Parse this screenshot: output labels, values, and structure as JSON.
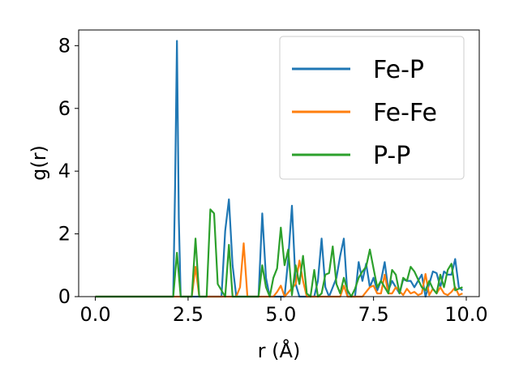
{
  "chart_data": {
    "type": "line",
    "xlabel": "r (Å)",
    "ylabel": "g(r)",
    "xlim": [
      -0.45,
      10.35
    ],
    "ylim": [
      0,
      8.5
    ],
    "xticks": [
      "0.0",
      "2.5",
      "5.0",
      "7.5",
      "10.0"
    ],
    "xtick_values": [
      0,
      2.5,
      5,
      7.5,
      10
    ],
    "yticks": [
      "0",
      "2",
      "4",
      "6",
      "8"
    ],
    "ytick_values": [
      0,
      2,
      4,
      6,
      8
    ],
    "grid": false,
    "legend_position": "top-right",
    "series": [
      {
        "name": "Fe-P",
        "color": "#1f77b4",
        "x": [
          0,
          2.0,
          2.1,
          2.15,
          2.2,
          2.25,
          2.3,
          2.4,
          3.4,
          3.5,
          3.6,
          3.7,
          3.8,
          4.4,
          4.5,
          4.6,
          4.7,
          5.1,
          5.2,
          5.3,
          5.4,
          5.5,
          5.9,
          6.0,
          6.1,
          6.2,
          6.3,
          6.5,
          6.6,
          6.7,
          6.8,
          7.0,
          7.1,
          7.2,
          7.3,
          7.4,
          7.5,
          7.6,
          7.7,
          7.8,
          7.9,
          8.0,
          8.1,
          8.2,
          8.3,
          8.4,
          8.5,
          8.6,
          8.7,
          8.8,
          8.9,
          9.0,
          9.1,
          9.2,
          9.3,
          9.4,
          9.5,
          9.6,
          9.7,
          9.8,
          9.9
        ],
        "y": [
          0,
          0,
          0,
          3.5,
          8.15,
          2.5,
          0,
          0,
          0,
          2.1,
          3.1,
          1.0,
          0,
          0,
          2.65,
          0.6,
          0,
          0,
          1.2,
          2.9,
          0.4,
          0,
          0,
          0.5,
          1.85,
          0.3,
          0,
          0.6,
          1.3,
          1.85,
          0,
          0,
          1.1,
          0.5,
          1.05,
          0.3,
          0.6,
          0.2,
          0.5,
          1.1,
          0.2,
          0.5,
          0.3,
          0.1,
          0.55,
          0.5,
          0.5,
          0.3,
          0.5,
          0.7,
          0,
          0.4,
          0.8,
          0.75,
          0.3,
          0.8,
          0.7,
          0.7,
          1.2,
          0.3,
          0.2
        ]
      },
      {
        "name": "Fe-Fe",
        "color": "#ff7f0e",
        "x": [
          0,
          2.6,
          2.7,
          2.8,
          3.8,
          3.9,
          4.0,
          4.1,
          4.8,
          4.9,
          5.0,
          5.1,
          5.4,
          5.5,
          5.6,
          5.7,
          6.6,
          6.7,
          6.8,
          7.2,
          7.3,
          7.4,
          7.5,
          7.6,
          7.7,
          7.8,
          7.9,
          8.0,
          8.1,
          8.3,
          8.4,
          8.5,
          8.6,
          8.7,
          8.8,
          8.9,
          9.0,
          9.1,
          9.2,
          9.3,
          9.4,
          9.5,
          9.6,
          9.7,
          9.8,
          9.9
        ],
        "y": [
          0,
          0,
          0.95,
          0,
          0,
          0.3,
          1.7,
          0,
          0,
          0.15,
          0.35,
          0,
          0.4,
          1.15,
          0.5,
          0,
          0,
          0.35,
          0,
          0,
          0.15,
          0.3,
          0.35,
          0.1,
          0.1,
          0.7,
          0.1,
          0.1,
          0.3,
          0.05,
          0.25,
          0.1,
          0.15,
          0.05,
          0.1,
          0.72,
          0.05,
          0.25,
          0.1,
          0.3,
          0.1,
          0.05,
          0.15,
          0.3,
          0.05,
          0.1
        ]
      },
      {
        "name": "P-P",
        "color": "#2ca02c",
        "x": [
          0,
          2.1,
          2.2,
          2.3,
          2.6,
          2.7,
          2.8,
          3.0,
          3.1,
          3.2,
          3.3,
          3.5,
          3.6,
          3.7,
          4.4,
          4.5,
          4.6,
          4.7,
          4.8,
          4.9,
          5.0,
          5.1,
          5.2,
          5.3,
          5.4,
          5.5,
          5.6,
          5.7,
          5.8,
          5.9,
          6.0,
          6.1,
          6.2,
          6.3,
          6.4,
          6.5,
          6.6,
          6.7,
          6.8,
          6.9,
          7.0,
          7.1,
          7.2,
          7.3,
          7.4,
          7.5,
          7.6,
          7.7,
          7.8,
          7.9,
          8.0,
          8.1,
          8.2,
          8.3,
          8.4,
          8.5,
          8.6,
          8.7,
          8.8,
          8.9,
          9.0,
          9.1,
          9.2,
          9.3,
          9.4,
          9.5,
          9.6,
          9.7,
          9.8,
          9.9
        ],
        "y": [
          0,
          0,
          1.4,
          0,
          0,
          1.85,
          0,
          0,
          2.78,
          2.65,
          0.4,
          0,
          1.65,
          0,
          0,
          1.0,
          0.3,
          0,
          0.6,
          0.9,
          2.2,
          1.0,
          1.5,
          0.05,
          1.0,
          0.4,
          1.3,
          0.1,
          0,
          0.85,
          0,
          0.1,
          0.7,
          0.75,
          1.6,
          0.4,
          0.1,
          0.6,
          0.2,
          0,
          0.25,
          0.6,
          0.8,
          0.95,
          1.5,
          0.9,
          0.3,
          0.5,
          0.3,
          0.1,
          0.85,
          0.7,
          0.1,
          0.6,
          0.5,
          0.95,
          0.8,
          0.55,
          0.3,
          0.2,
          0.5,
          0.25,
          0.1,
          0.7,
          0.3,
          0.85,
          1.05,
          0.2,
          0.25,
          0.3
        ]
      }
    ]
  }
}
